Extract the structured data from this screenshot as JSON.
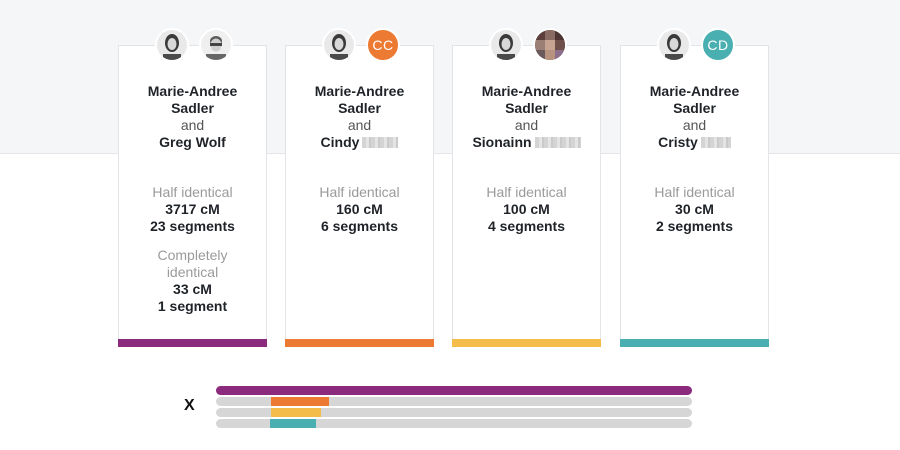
{
  "cards": [
    {
      "person1": "Marie-Andree Sadler",
      "person1_line1": "Marie-Andree",
      "person1_line2": "Sadler",
      "conjunction": "and",
      "person2": "Greg Wolf",
      "avatar2": {
        "type": "photo"
      },
      "accent_color": "#8c2a7e",
      "sharing": [
        {
          "label": "Half identical",
          "cm": "3717 cM",
          "segments": "23 segments"
        },
        {
          "label_line1": "Completely",
          "label_line2": "identical",
          "cm": "33 cM",
          "segments": "1 segment"
        }
      ]
    },
    {
      "person1_line1": "Marie-Andree",
      "person1_line2": "Sadler",
      "conjunction": "and",
      "person2": "Cindy",
      "avatar2": {
        "type": "initials",
        "text": "CC",
        "color": "#ec7a33"
      },
      "accent_color": "#ec7a33",
      "sharing": [
        {
          "label": "Half identical",
          "cm": "160 cM",
          "segments": "6 segments"
        }
      ]
    },
    {
      "person1_line1": "Marie-Andree",
      "person1_line2": "Sadler",
      "conjunction": "and",
      "person2": "Sionainn",
      "avatar2": {
        "type": "photo-pixelated"
      },
      "accent_color": "#f4bd4b",
      "sharing": [
        {
          "label": "Half identical",
          "cm": "100 cM",
          "segments": "4 segments"
        }
      ]
    },
    {
      "person1_line1": "Marie-Andree",
      "person1_line2": "Sadler",
      "conjunction": "and",
      "person2": "Cristy",
      "avatar2": {
        "type": "initials",
        "text": "CD",
        "color": "#4aafb0"
      },
      "accent_color": "#4aafb0",
      "sharing": [
        {
          "label": "Half identical",
          "cm": "30 cM",
          "segments": "2 segments"
        }
      ]
    }
  ],
  "chromosome": {
    "label": "X",
    "rows": [
      {
        "color": "#8c2a7e",
        "segments": [
          [
            0.0,
            1.0
          ]
        ]
      },
      {
        "color": "#ec7a33",
        "segments": [
          [
            0.115,
            0.237
          ]
        ]
      },
      {
        "color": "#f4bd4b",
        "segments": [
          [
            0.115,
            0.221
          ]
        ]
      },
      {
        "color": "#4aafb0",
        "segments": [
          [
            0.113,
            0.21
          ]
        ]
      }
    ],
    "track_color": "#d6d6d6"
  },
  "colors": {
    "background_top": "#f5f6f7",
    "card_border": "#e2e4e7",
    "muted_text": "#9a9a9a"
  }
}
